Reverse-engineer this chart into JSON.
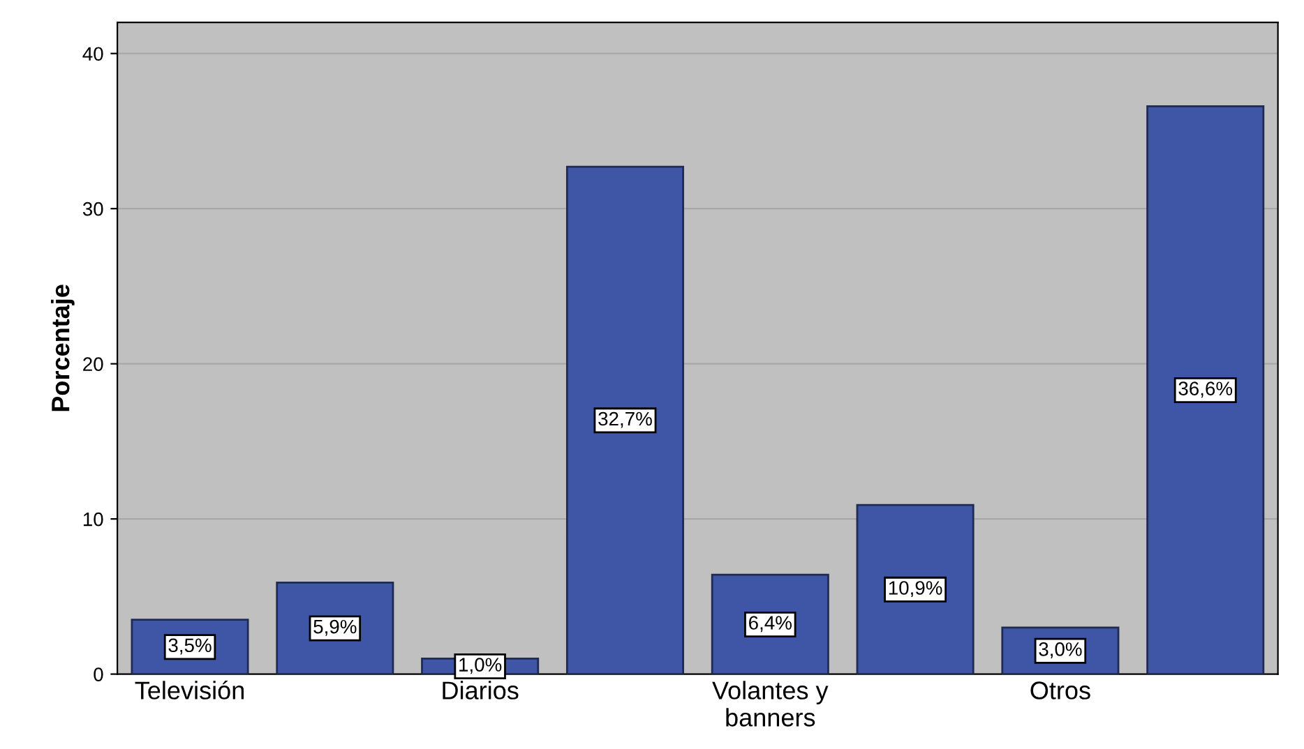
{
  "chart_data": {
    "type": "bar",
    "ylabel": "Porcentaje",
    "categories": [
      "Televisión",
      null,
      "Diarios",
      null,
      "Volantes y\nbanners",
      null,
      "Otros",
      null
    ],
    "values": [
      3.5,
      5.9,
      1.0,
      32.7,
      6.4,
      10.9,
      3.0,
      36.6
    ],
    "value_labels": [
      "3,5%",
      "5,9%",
      "1,0%",
      "32,7%",
      "6,4%",
      "10,9%",
      "3,0%",
      "36,6%"
    ],
    "color": "#3f55a5",
    "ylim": [
      0,
      42
    ],
    "yticks": [
      0,
      10,
      20,
      30,
      40
    ],
    "grid": "y"
  }
}
